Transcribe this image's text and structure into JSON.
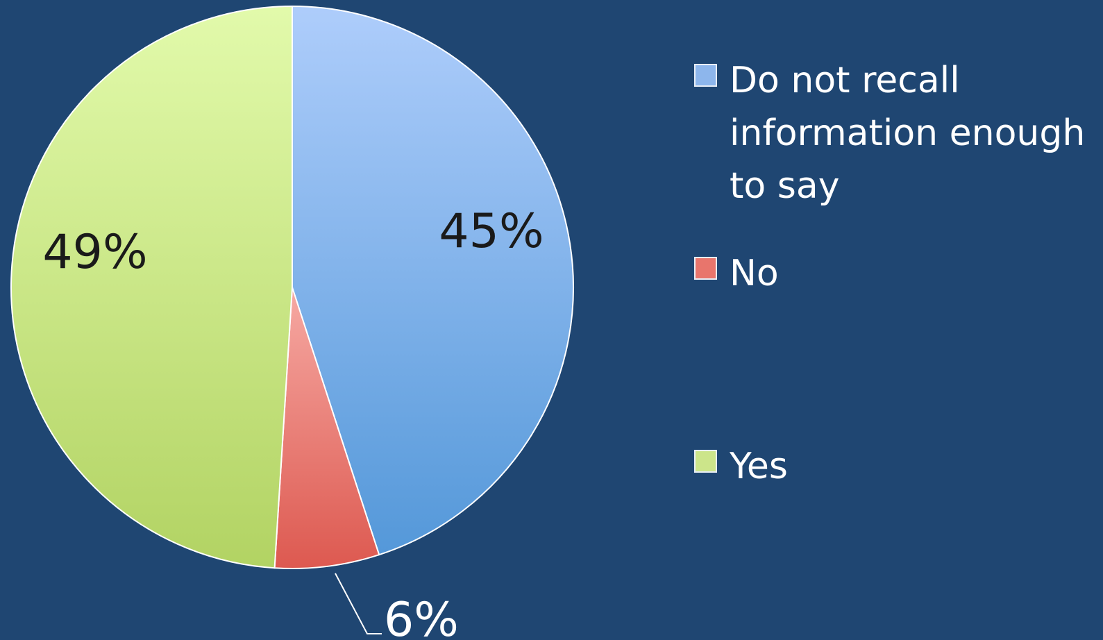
{
  "chart_data": {
    "type": "pie",
    "title": "",
    "slices": [
      {
        "label": "Do not recall information enough to say",
        "value": 45,
        "display": "45%",
        "color_top": "#aecdfb",
        "color_bottom": "#5498d9",
        "label_color": "#1a1a1a"
      },
      {
        "label": "No",
        "value": 6,
        "display": "6%",
        "color_top": "#f6a9a3",
        "color_bottom": "#dd5950",
        "label_color": "#ffffff"
      },
      {
        "label": "Yes",
        "value": 49,
        "display": "49%",
        "color_top": "#e2faab",
        "color_bottom": "#b2d363",
        "label_color": "#1a1a1a"
      }
    ],
    "start_angle_deg": 0,
    "direction": "clockwise",
    "legend_position": "right"
  },
  "legend": {
    "items": [
      {
        "label": "Do not recall information enough to say",
        "color": "#8db6ec"
      },
      {
        "label": "No",
        "color": "#e8756c"
      },
      {
        "label": "Yes",
        "color": "#cce58a"
      }
    ]
  },
  "colors": {
    "background": "#1f4672",
    "slice_border": "#ffffff"
  }
}
